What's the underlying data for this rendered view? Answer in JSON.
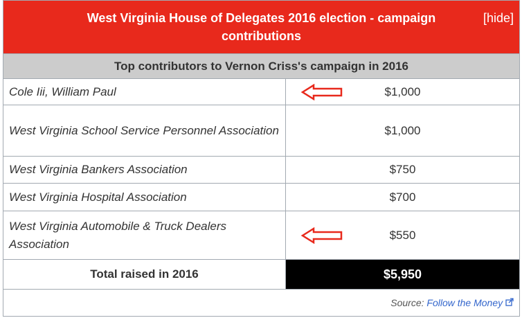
{
  "header": {
    "title": "West Virginia House of Delegates 2016 election - campaign contributions",
    "hide": "[hide]"
  },
  "table": {
    "subtitle": "Top contributors to Vernon Criss's campaign in 2016",
    "rows": [
      [
        "Cole Iii, William Paul",
        "$1,000"
      ],
      [
        "West Virginia School Service Personnel Association",
        "$1,000"
      ],
      [
        "West Virginia Bankers Association",
        "$750"
      ],
      [
        "West Virginia Hospital Association",
        "$700"
      ],
      [
        "West Virginia Automobile & Truck Dealers Association",
        "$550"
      ]
    ],
    "total": [
      "Total raised in 2016",
      "$5,950"
    ],
    "source": {
      "label": "Source:",
      "link": "Follow the Money"
    }
  }
}
